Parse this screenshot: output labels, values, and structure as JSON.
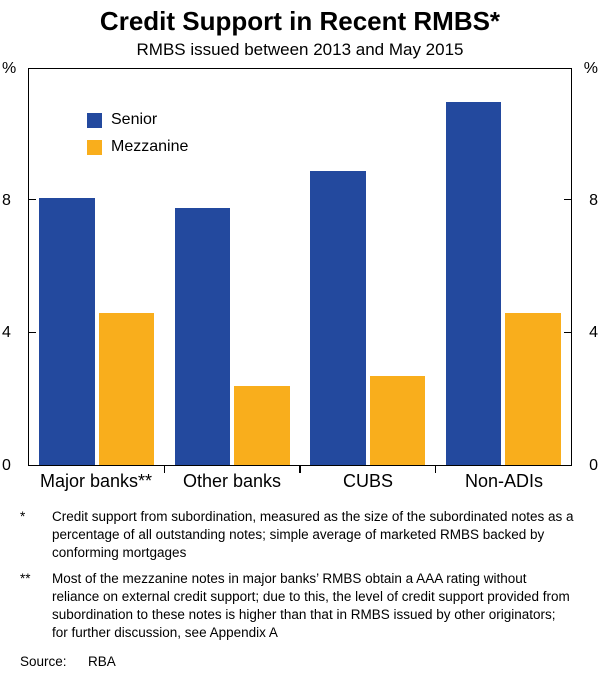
{
  "title": "Credit Support in Recent RMBS*",
  "subtitle": "RMBS issued between 2013 and May 2015",
  "chart_data": {
    "type": "bar",
    "categories": [
      "Major banks**",
      "Other banks",
      "CUBS",
      "Non-ADIs"
    ],
    "series": [
      {
        "name": "Senior",
        "color": "#23499E",
        "values": [
          8.1,
          7.8,
          8.9,
          11.0
        ]
      },
      {
        "name": "Mezzanine",
        "color": "#F9AE1C",
        "values": [
          4.6,
          2.4,
          2.7,
          4.6
        ]
      }
    ],
    "unit_label": "%",
    "yticks": [
      0,
      4,
      8
    ],
    "ylim": [
      0,
      12
    ],
    "grid": false,
    "legend_position": "top-left",
    "axis_sides": [
      "left",
      "right"
    ]
  },
  "footnotes": [
    {
      "marker": "*",
      "text": "Credit support from subordination, measured as the size of the subordinated notes as a percentage of all outstanding notes; simple average of marketed RMBS backed by conforming mortgages"
    },
    {
      "marker": "**",
      "text": "Most of the mezzanine notes in major banks’ RMBS obtain a AAA rating without reliance on external credit support; due to this, the level of credit support provided from subordination to these notes is higher than that in RMBS issued by other originators; for further discussion, see Appendix A"
    }
  ],
  "source": {
    "label": "Source:",
    "value": "RBA"
  }
}
